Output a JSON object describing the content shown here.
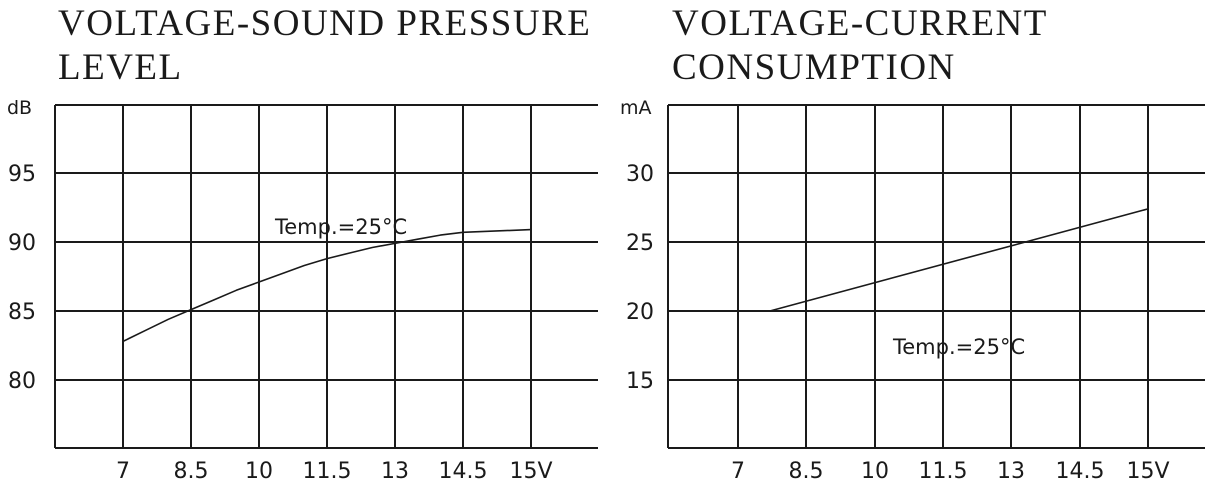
{
  "chart_data": [
    {
      "type": "line",
      "title_lines": [
        "VOLTAGE-SOUND PRESSURE",
        "LEVEL"
      ],
      "y_unit": "dB",
      "x_unit": "V",
      "x_ticks": [
        "7",
        "8.5",
        "10",
        "11.5",
        "13",
        "14.5",
        "15V"
      ],
      "y_ticks": [
        "95",
        "90",
        "85",
        "80"
      ],
      "annotation": "Temp.=25°C",
      "grid": true,
      "series": [
        {
          "x": [
            7,
            7.5,
            8,
            8.5,
            9,
            9.5,
            10,
            10.5,
            11,
            11.5,
            12,
            12.5,
            13,
            13.5,
            14,
            14.5,
            15
          ],
          "y": [
            82.8,
            83.6,
            84.4,
            85.1,
            85.8,
            86.5,
            87.1,
            87.7,
            88.3,
            88.8,
            89.2,
            89.6,
            89.9,
            90.2,
            90.5,
            90.7,
            90.9
          ]
        }
      ]
    },
    {
      "type": "line",
      "title_lines": [
        "VOLTAGE-CURRENT",
        "CONSUMPTION"
      ],
      "y_unit": "mA",
      "x_unit": "V",
      "x_ticks": [
        "7",
        "8.5",
        "10",
        "11.5",
        "13",
        "14.5",
        "15V"
      ],
      "y_ticks": [
        "30",
        "25",
        "20",
        "15"
      ],
      "annotation": "Temp.=25°C",
      "grid": true,
      "series": [
        {
          "x": [
            7.7,
            15
          ],
          "y": [
            20.0,
            27.4
          ]
        }
      ]
    }
  ]
}
